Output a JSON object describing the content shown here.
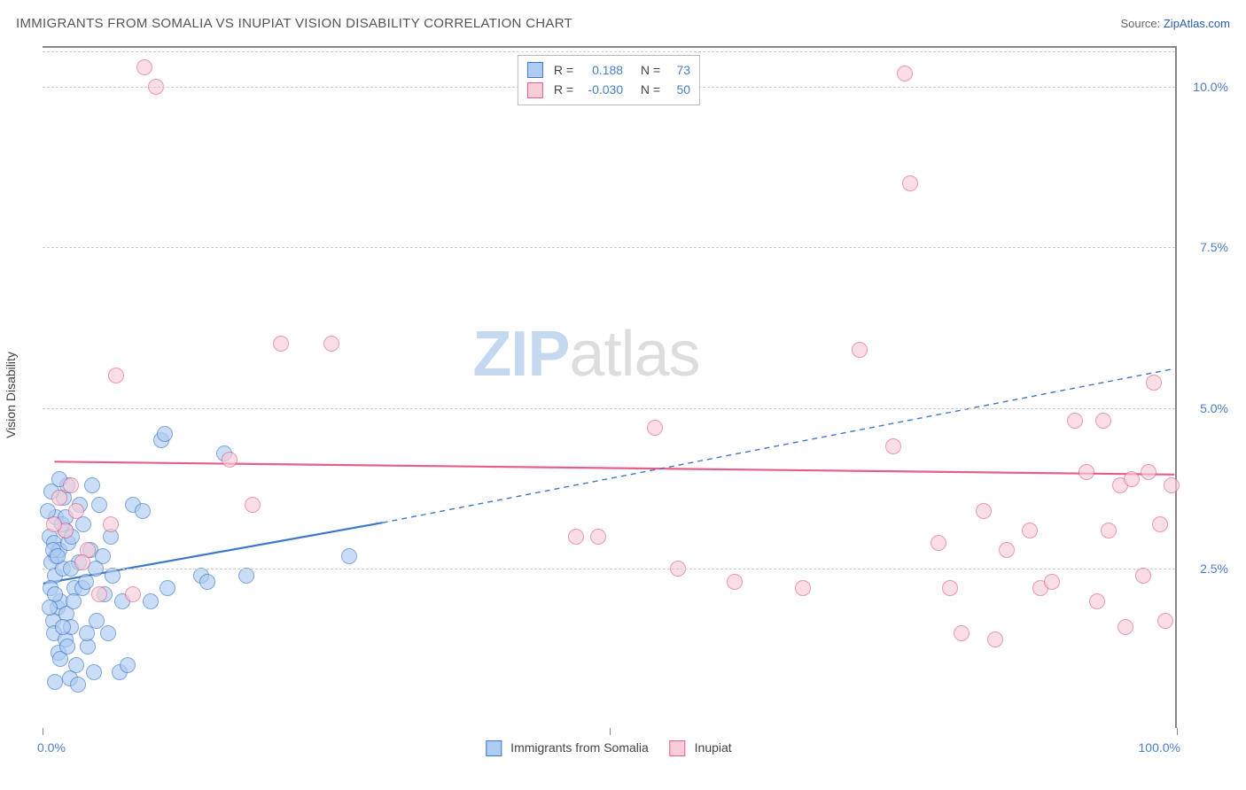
{
  "title": "IMMIGRANTS FROM SOMALIA VS INUPIAT VISION DISABILITY CORRELATION CHART",
  "source_prefix": "Source: ",
  "source_link": "ZipAtlas.com",
  "watermark": {
    "a": "ZIP",
    "b": "atlas"
  },
  "chart": {
    "type": "scatter",
    "ylabel": "Vision Disability",
    "xlim": [
      0,
      100
    ],
    "ylim": [
      0,
      10.6
    ],
    "y_ticks": [
      2.5,
      5.0,
      7.5,
      10.0
    ],
    "y_tick_labels": [
      "2.5%",
      "5.0%",
      "7.5%",
      "10.0%"
    ],
    "x_ticks": [
      0,
      50,
      100
    ],
    "x_tick_left_label": "0.0%",
    "x_tick_right_label": "100.0%",
    "grid_color": "#cccccc",
    "background": "#ffffff",
    "marker_radius": 9,
    "marker_stroke_width": 1.5,
    "marker_opacity": 0.65
  },
  "legend_top": {
    "r_label": "R =",
    "n_label": "N =",
    "rows": [
      {
        "r": "0.188",
        "n": "73"
      },
      {
        "r": "-0.030",
        "n": "50"
      }
    ]
  },
  "series": [
    {
      "name": "Immigrants from Somalia",
      "fill": "#aecbf2",
      "stroke": "#3f78c9",
      "trend": {
        "x1": 0,
        "y1": 2.25,
        "x2": 30,
        "y2": 3.2,
        "dash_x2": 100,
        "dash_y2": 5.6,
        "width": 2.2
      },
      "points": [
        [
          0.6,
          3.0
        ],
        [
          1.0,
          2.9
        ],
        [
          1.2,
          2.7
        ],
        [
          0.8,
          2.6
        ],
        [
          1.5,
          2.8
        ],
        [
          2.0,
          3.1
        ],
        [
          1.1,
          2.4
        ],
        [
          0.7,
          2.2
        ],
        [
          1.8,
          2.5
        ],
        [
          2.3,
          2.9
        ],
        [
          1.3,
          1.9
        ],
        [
          2.8,
          2.2
        ],
        [
          0.9,
          1.7
        ],
        [
          1.6,
          2.0
        ],
        [
          3.2,
          2.6
        ],
        [
          2.1,
          1.8
        ],
        [
          1.0,
          1.5
        ],
        [
          3.5,
          2.2
        ],
        [
          2.0,
          1.4
        ],
        [
          4.0,
          1.3
        ],
        [
          1.4,
          1.2
        ],
        [
          2.5,
          1.6
        ],
        [
          3.0,
          1.0
        ],
        [
          4.5,
          0.9
        ],
        [
          1.2,
          3.3
        ],
        [
          0.5,
          3.4
        ],
        [
          1.7,
          3.2
        ],
        [
          2.6,
          3.0
        ],
        [
          3.3,
          3.5
        ],
        [
          1.9,
          3.6
        ],
        [
          0.8,
          3.7
        ],
        [
          2.2,
          3.8
        ],
        [
          3.8,
          2.3
        ],
        [
          4.8,
          1.7
        ],
        [
          5.5,
          2.1
        ],
        [
          6.2,
          2.4
        ],
        [
          6.8,
          0.9
        ],
        [
          7.5,
          1.0
        ],
        [
          5.0,
          3.5
        ],
        [
          4.2,
          2.8
        ],
        [
          2.4,
          0.8
        ],
        [
          3.1,
          0.7
        ],
        [
          1.1,
          0.75
        ],
        [
          5.8,
          1.5
        ],
        [
          7.0,
          2.0
        ],
        [
          8.0,
          3.5
        ],
        [
          8.8,
          3.4
        ],
        [
          9.5,
          2.0
        ],
        [
          10.5,
          4.5
        ],
        [
          10.8,
          4.6
        ],
        [
          11.0,
          2.2
        ],
        [
          14.0,
          2.4
        ],
        [
          14.5,
          2.3
        ],
        [
          16.0,
          4.3
        ],
        [
          18.0,
          2.4
        ],
        [
          27.0,
          2.7
        ],
        [
          3.6,
          3.2
        ],
        [
          4.4,
          3.8
        ],
        [
          2.7,
          2.0
        ],
        [
          1.5,
          3.9
        ],
        [
          0.9,
          2.8
        ],
        [
          1.1,
          2.1
        ],
        [
          1.8,
          1.6
        ],
        [
          2.5,
          2.5
        ],
        [
          0.6,
          1.9
        ],
        [
          3.9,
          1.5
        ],
        [
          5.3,
          2.7
        ],
        [
          6.0,
          3.0
        ],
        [
          4.7,
          2.5
        ],
        [
          2.0,
          3.3
        ],
        [
          1.3,
          2.7
        ],
        [
          1.6,
          1.1
        ],
        [
          2.2,
          1.3
        ]
      ]
    },
    {
      "name": "Inupiat",
      "fill": "#f7cdd8",
      "stroke": "#e75f89",
      "trend": {
        "x1": 1,
        "y1": 4.15,
        "x2": 100,
        "y2": 3.95,
        "width": 2.2
      },
      "points": [
        [
          1.5,
          3.6
        ],
        [
          2.0,
          3.1
        ],
        [
          3.0,
          3.4
        ],
        [
          4.0,
          2.8
        ],
        [
          5.0,
          2.1
        ],
        [
          6.0,
          3.2
        ],
        [
          8.0,
          2.1
        ],
        [
          9.0,
          10.3
        ],
        [
          10.0,
          10.0
        ],
        [
          6.5,
          5.5
        ],
        [
          16.5,
          4.2
        ],
        [
          18.5,
          3.5
        ],
        [
          21.0,
          6.0
        ],
        [
          25.5,
          6.0
        ],
        [
          47.0,
          3.0
        ],
        [
          49.0,
          3.0
        ],
        [
          54.0,
          4.7
        ],
        [
          56.0,
          2.5
        ],
        [
          61.0,
          2.3
        ],
        [
          67.0,
          2.2
        ],
        [
          72.0,
          5.9
        ],
        [
          75.0,
          4.4
        ],
        [
          76.0,
          10.2
        ],
        [
          76.5,
          8.5
        ],
        [
          79.0,
          2.9
        ],
        [
          80.0,
          2.2
        ],
        [
          81.0,
          1.5
        ],
        [
          83.0,
          3.4
        ],
        [
          84.0,
          1.4
        ],
        [
          85.0,
          2.8
        ],
        [
          87.0,
          3.1
        ],
        [
          88.0,
          2.2
        ],
        [
          89.0,
          2.3
        ],
        [
          91.0,
          4.8
        ],
        [
          92.0,
          4.0
        ],
        [
          93.0,
          2.0
        ],
        [
          93.5,
          4.8
        ],
        [
          94.0,
          3.1
        ],
        [
          95.0,
          3.8
        ],
        [
          95.5,
          1.6
        ],
        [
          96.0,
          3.9
        ],
        [
          97.0,
          2.4
        ],
        [
          97.5,
          4.0
        ],
        [
          98.0,
          5.4
        ],
        [
          98.5,
          3.2
        ],
        [
          99.0,
          1.7
        ],
        [
          99.5,
          3.8
        ],
        [
          2.5,
          3.8
        ],
        [
          3.5,
          2.6
        ],
        [
          1.0,
          3.2
        ]
      ]
    }
  ]
}
